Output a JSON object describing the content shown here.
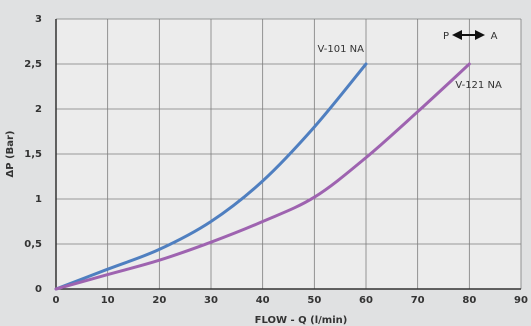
{
  "chart_data": {
    "type": "line",
    "xlabel": "FLOW - Q (l/min)",
    "ylabel": "ΔP (Bar)",
    "xlim": [
      0,
      90
    ],
    "ylim": [
      0,
      3
    ],
    "grid": true,
    "x_ticks": [
      0,
      10,
      20,
      30,
      40,
      50,
      60,
      70,
      80,
      90
    ],
    "x_tick_labels": [
      "0",
      "10",
      "20",
      "30",
      "40",
      "50",
      "60",
      "70",
      "80",
      "90"
    ],
    "y_ticks": [
      0,
      0.5,
      1,
      1.5,
      2,
      2.5,
      3
    ],
    "y_tick_labels": [
      "0",
      "0,5",
      "1",
      "1,5",
      "2",
      "2,5",
      "3"
    ],
    "series": [
      {
        "name": "V-101 NA",
        "color": "#4f7fc0",
        "x": [
          0,
          10,
          20,
          30,
          40,
          50,
          60
        ],
        "y": [
          0,
          0.22,
          0.44,
          0.75,
          1.2,
          1.8,
          2.5
        ]
      },
      {
        "name": "V-121 NA",
        "color": "#9e63b0",
        "x": [
          0,
          10,
          20,
          30,
          40,
          50,
          60,
          70,
          80
        ],
        "y": [
          0,
          0.16,
          0.32,
          0.52,
          0.75,
          1.02,
          1.46,
          1.97,
          2.5
        ]
      }
    ],
    "annotations": {
      "flow_from": "P",
      "flow_to": "A"
    }
  }
}
